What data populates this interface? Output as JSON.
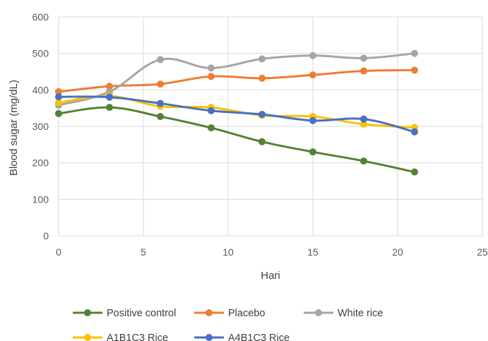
{
  "chart_data": {
    "type": "line",
    "title": "",
    "xlabel": "Hari",
    "ylabel": "Blood sugar (mg/dL)",
    "xlim": [
      0,
      25
    ],
    "ylim": [
      0,
      600
    ],
    "xticks": [
      0,
      5,
      10,
      15,
      20,
      25
    ],
    "yticks": [
      0,
      100,
      200,
      300,
      400,
      500,
      600
    ],
    "grid": "vertical and horizontal",
    "legend_position": "bottom",
    "x": [
      0,
      3,
      6,
      9,
      12,
      15,
      18,
      21
    ],
    "series": [
      {
        "name": "Positive control",
        "color": "#548235",
        "values": [
          335,
          352,
          327,
          296,
          258,
          230,
          205,
          175
        ]
      },
      {
        "name": "Placebo",
        "color": "#ED7D31",
        "values": [
          395,
          410,
          416,
          437,
          432,
          441,
          452,
          454
        ]
      },
      {
        "name": "White rice",
        "color": "#A5A5A5",
        "values": [
          358,
          395,
          483,
          460,
          485,
          494,
          487,
          500
        ]
      },
      {
        "name": "A1B1C3 Rice",
        "color": "#FFC000",
        "values": [
          365,
          383,
          355,
          352,
          330,
          327,
          306,
          297
        ]
      },
      {
        "name": "A4B1C3 Rice",
        "color": "#4472C4",
        "values": [
          381,
          380,
          363,
          343,
          333,
          316,
          320,
          285
        ]
      }
    ]
  }
}
